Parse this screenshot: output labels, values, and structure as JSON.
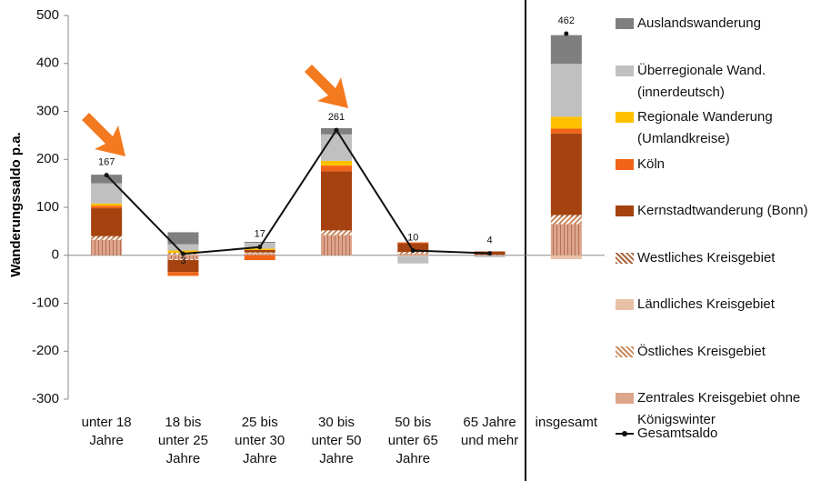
{
  "chart_data": {
    "type": "bar",
    "y_label": "Wanderungssaldo p.a.",
    "categories": [
      "unter 18 Jahre",
      "18 bis unter 25 Jahre",
      "25 bis unter 30 Jahre",
      "30 bis unter 50 Jahre",
      "50 bis unter 65 Jahre",
      "65 Jahre und mehr",
      "insgesamt"
    ],
    "ylim": [
      -300,
      500
    ],
    "yticks": [
      -300,
      -200,
      -100,
      0,
      100,
      200,
      300,
      400,
      500
    ],
    "series": [
      {
        "name": "Zentrales Kreisgebiet ohne Königswinter",
        "color": "#dca58c",
        "pattern": "vertical",
        "values": [
          32,
          -8,
          3,
          42,
          3,
          0,
          65
        ]
      },
      {
        "name": "Östliches Kreisgebiet",
        "color": "#c9895e",
        "pattern": "diagonal",
        "values": [
          5,
          -2,
          0,
          8,
          2,
          0,
          15
        ]
      },
      {
        "name": "Ländliches Kreisgebiet",
        "color": "#e8c0a6",
        "values": [
          0,
          2,
          2,
          0,
          -2,
          0,
          -8
        ]
      },
      {
        "name": "Westliches Kreisgebiet",
        "color": "#a8643a",
        "pattern": "diagonal",
        "values": [
          3,
          3,
          1,
          2,
          2,
          1,
          4
        ]
      },
      {
        "name": "Kernstadtwanderung (Bonn)",
        "color": "#a5420f",
        "values": [
          58,
          -25,
          5,
          123,
          18,
          7,
          170
        ]
      },
      {
        "name": "Köln",
        "color": "#f26419",
        "values": [
          5,
          -8,
          -10,
          12,
          2,
          0,
          10
        ]
      },
      {
        "name": "Regionale Wanderung (Umlandkreise)",
        "color": "#ffc000",
        "values": [
          5,
          5,
          3,
          10,
          0,
          0,
          25
        ]
      },
      {
        "name": "Überregionale Wand. (innerdeutsch)",
        "color": "#c0c0c0",
        "values": [
          42,
          13,
          12,
          55,
          -15,
          -4,
          110
        ]
      },
      {
        "name": "Auslandswanderung",
        "color": "#7f7f7f",
        "values": [
          18,
          25,
          2,
          13,
          0,
          0,
          60
        ]
      }
    ],
    "line": {
      "name": "Gesamtsaldo",
      "color": "#111111",
      "values": [
        167,
        3,
        17,
        261,
        10,
        4,
        462
      ]
    }
  }
}
